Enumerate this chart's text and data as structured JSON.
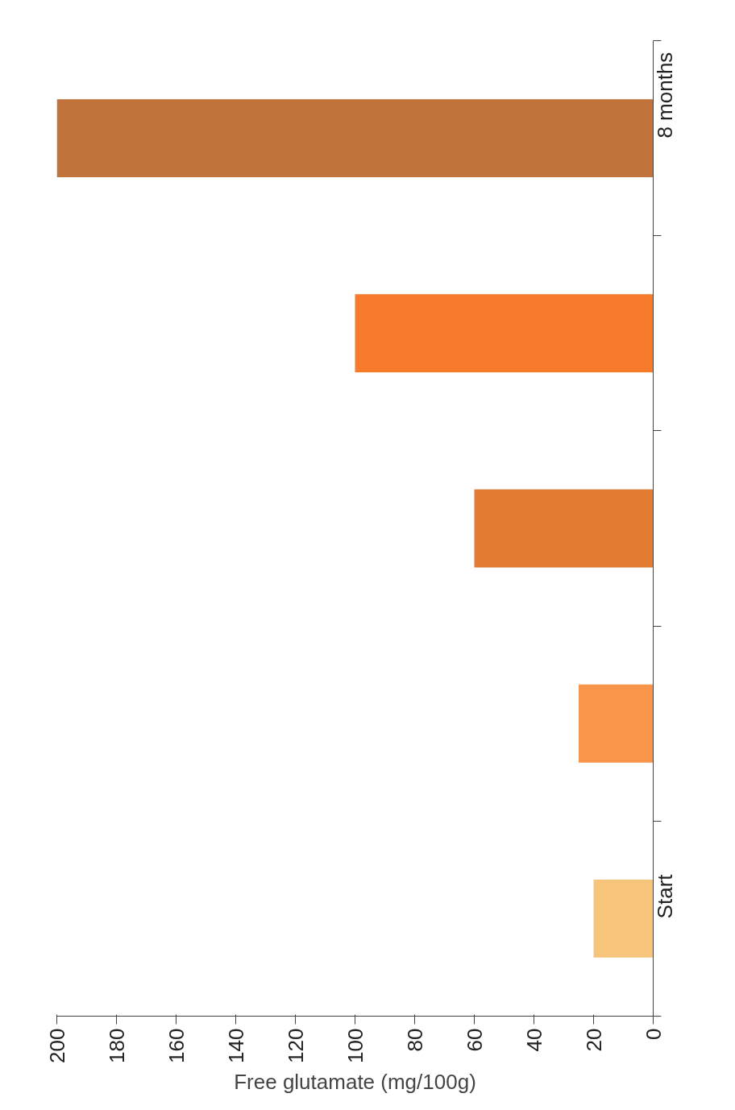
{
  "chart_data": {
    "type": "bar",
    "orientation": "horizontal",
    "xlabel": "Free glutamate (mg/100g)",
    "categories": [
      "8 months",
      null,
      null,
      null,
      "Start"
    ],
    "values": [
      200,
      100,
      60,
      25,
      20
    ],
    "colors": [
      "#c0733a",
      "#f77b2a",
      "#e47b33",
      "#f9954a",
      "#f7c47c"
    ],
    "xlim": [
      200,
      0
    ],
    "xticks": [
      200,
      180,
      160,
      140,
      120,
      100,
      80,
      60,
      40,
      20,
      0
    ],
    "grid": false
  }
}
